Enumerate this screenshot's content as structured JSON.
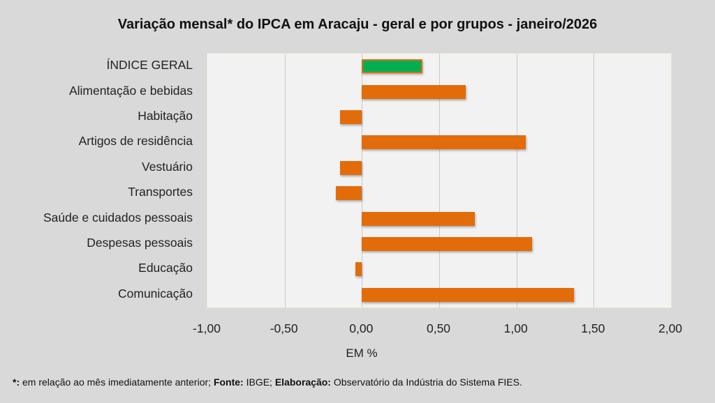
{
  "chart_data": {
    "type": "bar",
    "orientation": "horizontal",
    "title": "Variação  mensal* do IPCA em Aracaju  - geral e por grupos  - janeiro/2026",
    "xlabel": "EM %",
    "ylabel": "",
    "xlim": [
      -1.0,
      2.0
    ],
    "xticks": [
      "-1,00",
      "-0,50",
      "0,00",
      "0,50",
      "1,00",
      "1,50",
      "2,00"
    ],
    "xtick_values": [
      -1.0,
      -0.5,
      0.0,
      0.5,
      1.0,
      1.5,
      2.0
    ],
    "grid": true,
    "categories": [
      "ÍNDICE GERAL",
      "Alimentação e bebidas",
      "Habitação",
      "Artigos de residência",
      "Vestuário",
      "Transportes",
      "Saúde e cuidados pessoais",
      "Despesas pessoais",
      "Educação",
      "Comunicação"
    ],
    "values": [
      0.39,
      0.67,
      -0.14,
      1.06,
      -0.14,
      -0.17,
      0.73,
      1.1,
      -0.04,
      1.37
    ],
    "colors": [
      "#00b050",
      "#e36c0a",
      "#e36c0a",
      "#e36c0a",
      "#e36c0a",
      "#e36c0a",
      "#e36c0a",
      "#e36c0a",
      "#e36c0a",
      "#e36c0a"
    ],
    "highlight_border": "#e36c0a"
  },
  "footnote": {
    "star_label": "*:",
    "star_text": " em relação ao mês imediatamente  anterior; ",
    "source_label": "Fonte:",
    "source_text": " IBGE; ",
    "elab_label": "Elaboração:",
    "elab_text": " Observatório da Indústria do Sistema FIES."
  }
}
